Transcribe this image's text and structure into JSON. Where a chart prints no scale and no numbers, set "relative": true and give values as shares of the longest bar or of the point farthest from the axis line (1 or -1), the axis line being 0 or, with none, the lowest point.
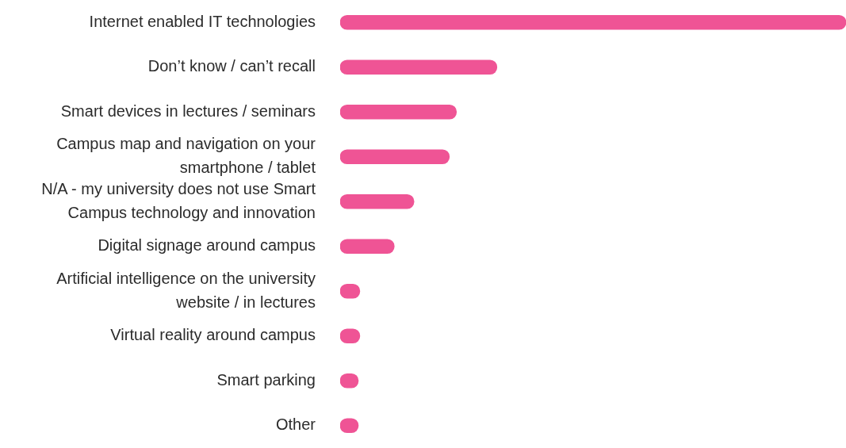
{
  "chart_data": {
    "type": "bar",
    "orientation": "horizontal",
    "relative": true,
    "legend": false,
    "categories": [
      "Internet enabled IT technologies",
      "Don’t know / can’t recall",
      "Smart devices in lectures / seminars",
      "Campus map and navigation on your smartphone / tablet",
      "N/A - my university does not use Smart Campus technology and innovation",
      "Digital signage around campus",
      "Artificial intelligence on the university website / in lectures",
      "Virtual reality around campus",
      "Smart parking",
      "Other"
    ],
    "values": [
      1,
      0.31,
      0.23,
      0.216,
      0.146,
      0.107,
      0.039,
      0.039,
      0.036,
      0.036
    ],
    "color": "#ef5495"
  }
}
